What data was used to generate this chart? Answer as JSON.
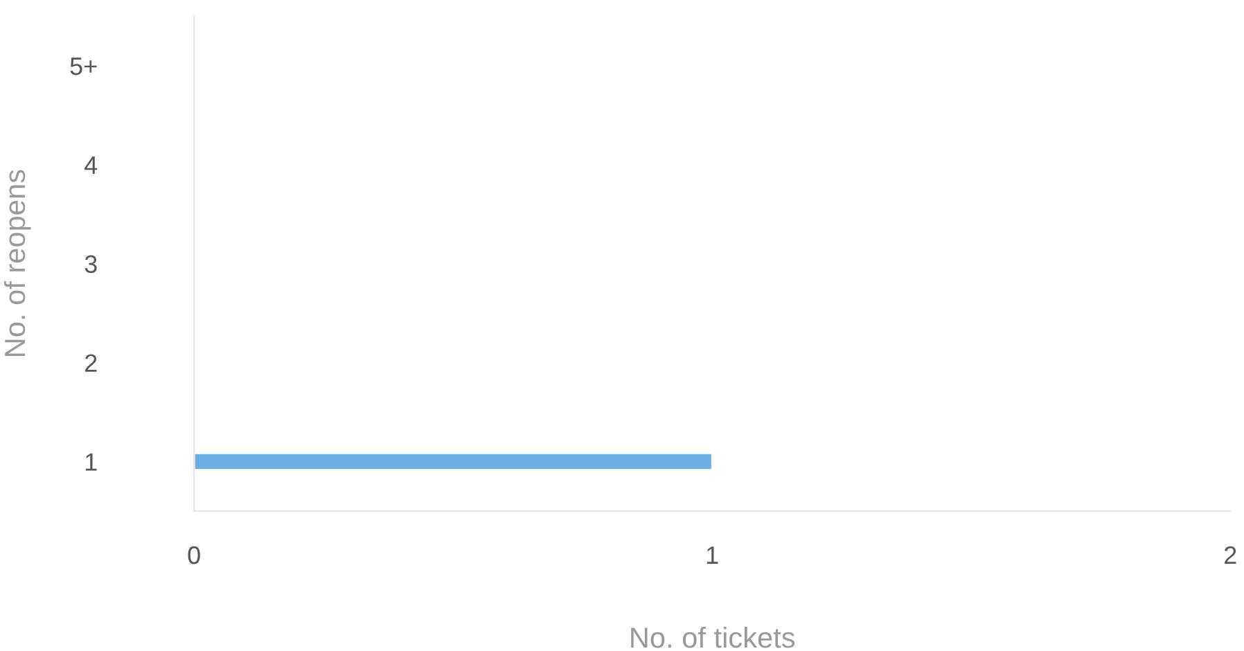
{
  "chart_data": {
    "type": "bar",
    "orientation": "horizontal",
    "xlabel": "No. of tickets",
    "ylabel": "No. of reopens",
    "categories": [
      "5+",
      "4",
      "3",
      "2",
      "1"
    ],
    "values": [
      0,
      0,
      0,
      0,
      1
    ],
    "color": "#6aaee6",
    "xlim": [
      0,
      2
    ],
    "xticks": [
      0,
      1,
      2
    ],
    "grid": false,
    "legend": false
  }
}
